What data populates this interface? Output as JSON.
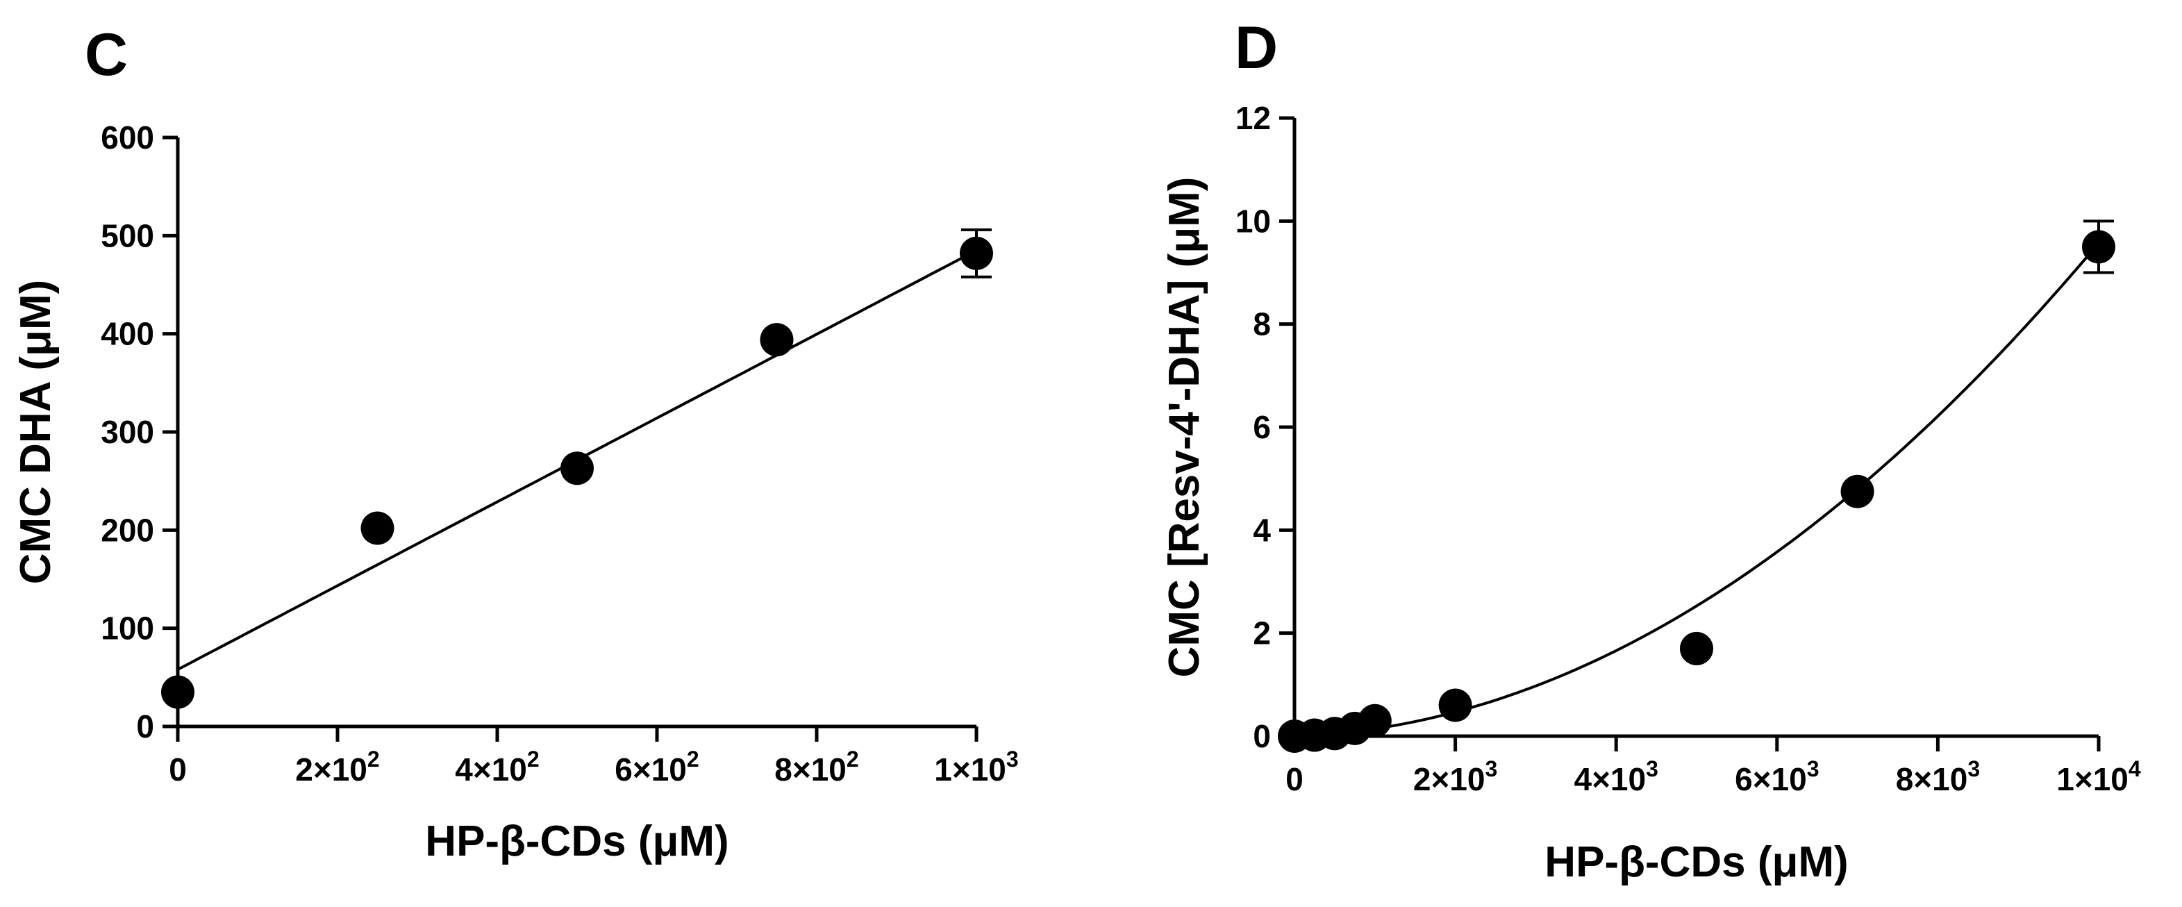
{
  "chart_data": [
    {
      "panel": "C",
      "type": "scatter",
      "xlabel": "HP-β-CDs (μM)",
      "ylabel": "CMC DHA (μM)",
      "xlim": [
        0,
        1000
      ],
      "ylim": [
        0,
        600
      ],
      "xticks": [
        {
          "value": 0,
          "mant": "0",
          "exp": ""
        },
        {
          "value": 200,
          "mant": "2×10",
          "exp": "2"
        },
        {
          "value": 400,
          "mant": "4×10",
          "exp": "2"
        },
        {
          "value": 600,
          "mant": "6×10",
          "exp": "2"
        },
        {
          "value": 800,
          "mant": "8×10",
          "exp": "2"
        },
        {
          "value": 1000,
          "mant": "1×10",
          "exp": "3"
        }
      ],
      "yticks": [
        {
          "value": 0,
          "label": "0"
        },
        {
          "value": 100,
          "label": "100"
        },
        {
          "value": 200,
          "label": "200"
        },
        {
          "value": 300,
          "label": "300"
        },
        {
          "value": 400,
          "label": "400"
        },
        {
          "value": 500,
          "label": "500"
        },
        {
          "value": 600,
          "label": "600"
        }
      ],
      "points": [
        {
          "x": 0,
          "y": 35
        },
        {
          "x": 250,
          "y": 202
        },
        {
          "x": 500,
          "y": 263
        },
        {
          "x": 750,
          "y": 394
        },
        {
          "x": 1000,
          "y": 482,
          "err": 24
        }
      ],
      "fit": {
        "kind": "linear",
        "intercept": 58,
        "slope": 0.427
      }
    },
    {
      "panel": "D",
      "type": "scatter",
      "xlabel": "HP-β-CDs (μM)",
      "ylabel": "CMC [Resv-4'-DHA] (μM)",
      "xlim": [
        0,
        10000
      ],
      "ylim": [
        0,
        12
      ],
      "xticks": [
        {
          "value": 0,
          "mant": "0",
          "exp": ""
        },
        {
          "value": 2000,
          "mant": "2×10",
          "exp": "3"
        },
        {
          "value": 4000,
          "mant": "4×10",
          "exp": "3"
        },
        {
          "value": 6000,
          "mant": "6×10",
          "exp": "3"
        },
        {
          "value": 8000,
          "mant": "8×10",
          "exp": "3"
        },
        {
          "value": 10000,
          "mant": "1×10",
          "exp": "4"
        }
      ],
      "yticks": [
        {
          "value": 0,
          "label": "0"
        },
        {
          "value": 2,
          "label": "2"
        },
        {
          "value": 4,
          "label": "4"
        },
        {
          "value": 6,
          "label": "6"
        },
        {
          "value": 8,
          "label": "8"
        },
        {
          "value": 10,
          "label": "10"
        },
        {
          "value": 12,
          "label": "12"
        }
      ],
      "points": [
        {
          "x": 0,
          "y": 0.0
        },
        {
          "x": 250,
          "y": 0.02
        },
        {
          "x": 500,
          "y": 0.05
        },
        {
          "x": 750,
          "y": 0.15
        },
        {
          "x": 1000,
          "y": 0.3
        },
        {
          "x": 2000,
          "y": 0.6
        },
        {
          "x": 5000,
          "y": 1.7
        },
        {
          "x": 7000,
          "y": 4.75
        },
        {
          "x": 10000,
          "y": 9.5,
          "err": 0.5
        }
      ],
      "fit": {
        "kind": "quadratic",
        "a": 9.04e-08,
        "b": 5.35e-05,
        "c": 0
      }
    }
  ]
}
